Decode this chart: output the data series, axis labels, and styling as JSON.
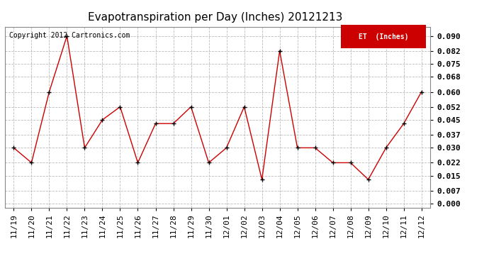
{
  "title": "Evapotranspiration per Day (Inches) 20121213",
  "copyright": "Copyright 2012 Cartronics.com",
  "legend_label": "ET  (Inches)",
  "legend_bg": "#cc0000",
  "legend_text_color": "#ffffff",
  "x_labels": [
    "11/19",
    "11/20",
    "11/21",
    "11/22",
    "11/23",
    "11/24",
    "11/25",
    "11/26",
    "11/27",
    "11/28",
    "11/29",
    "11/30",
    "12/01",
    "12/02",
    "12/03",
    "12/04",
    "12/05",
    "12/06",
    "12/07",
    "12/08",
    "12/09",
    "12/10",
    "12/11",
    "12/12"
  ],
  "y_values": [
    0.03,
    0.022,
    0.06,
    0.09,
    0.03,
    0.045,
    0.052,
    0.022,
    0.043,
    0.043,
    0.052,
    0.022,
    0.03,
    0.052,
    0.013,
    0.082,
    0.03,
    0.03,
    0.022,
    0.022,
    0.013,
    0.03,
    0.043,
    0.06
  ],
  "y_ticks": [
    0.0,
    0.007,
    0.015,
    0.022,
    0.03,
    0.037,
    0.045,
    0.052,
    0.06,
    0.068,
    0.075,
    0.082,
    0.09
  ],
  "ylim": [
    -0.002,
    0.095
  ],
  "line_color": "#cc0000",
  "marker_color": "#000000",
  "bg_color": "#ffffff",
  "grid_color": "#bbbbbb",
  "title_fontsize": 11,
  "tick_fontsize": 8,
  "copyright_fontsize": 7
}
